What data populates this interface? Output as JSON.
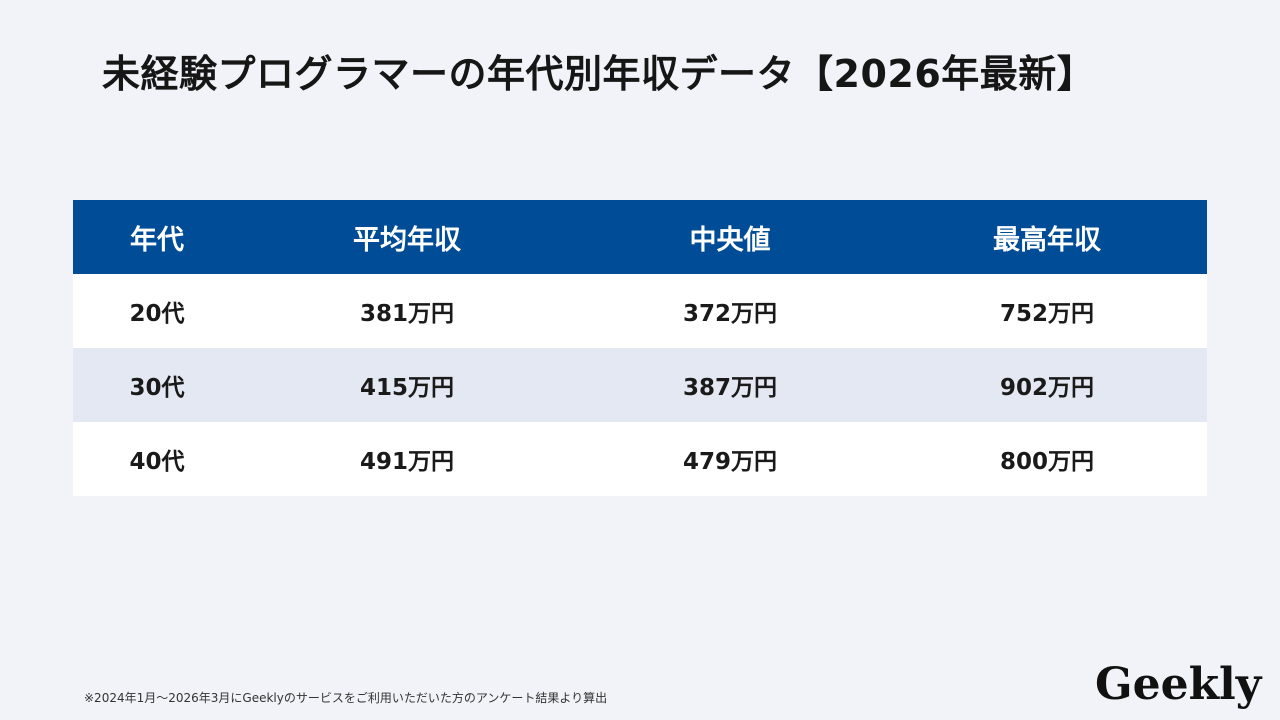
{
  "title": "未経験プログラマーの年代別年収データ【2026年最新】",
  "table": {
    "headers": [
      "年代",
      "平均年収",
      "中央値",
      "最高年収"
    ],
    "rows": [
      [
        "20代",
        "381万円",
        "372万円",
        "752万円"
      ],
      [
        "30代",
        "415万円",
        "387万円",
        "902万円"
      ],
      [
        "40代",
        "491万円",
        "479万円",
        "800万円"
      ]
    ]
  },
  "footnote": "※2024年1月～2026年3月にGeeklyのサービスをご利用いただいた方のアンケート結果より算出",
  "logo": "Geekly",
  "colors": {
    "background": "#f1f3f8",
    "header": "#004c97",
    "row_alt": "#e3e8f3"
  }
}
